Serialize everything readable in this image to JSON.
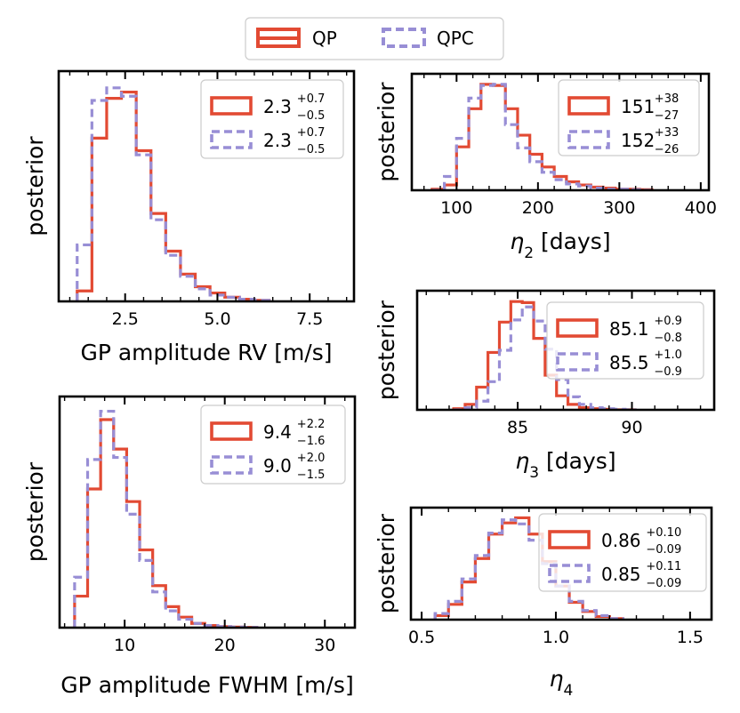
{
  "colors": {
    "qp": "#e24a33",
    "qpc": "#988ed5"
  },
  "global_legend": {
    "items": [
      {
        "name": "QP",
        "style": "solid"
      },
      {
        "name": "QPC",
        "style": "dashed"
      }
    ]
  },
  "chart_data": [
    {
      "id": "a",
      "type": "histogram",
      "xlabel": "GP amplitude RV [m/s]",
      "ylabel": "posterior",
      "xlim": [
        0.7,
        8.7
      ],
      "ylim": [
        0,
        1.1
      ],
      "xticks": [
        2.5,
        5.0,
        7.5
      ],
      "xtick_labels": [
        "2.5",
        "5.0",
        "7.5"
      ],
      "bin_edges": [
        1.2,
        1.6,
        2.0,
        2.4,
        2.8,
        3.2,
        3.6,
        4.0,
        4.4,
        4.8,
        5.2,
        5.6,
        6.0,
        6.4
      ],
      "series": [
        {
          "name": "QP",
          "values": [
            0.05,
            0.78,
            0.97,
            1.0,
            0.72,
            0.42,
            0.24,
            0.13,
            0.07,
            0.04,
            0.02,
            0.01,
            0.005
          ]
        },
        {
          "name": "QPC",
          "values": [
            0.27,
            0.96,
            1.02,
            0.98,
            0.7,
            0.39,
            0.22,
            0.12,
            0.06,
            0.03,
            0.02,
            0.01,
            0.005
          ]
        }
      ],
      "legend": [
        {
          "series": "QP",
          "base": "2.3",
          "sup": "+0.7",
          "sub": "−0.5"
        },
        {
          "series": "QPC",
          "base": "2.3",
          "sup": "+0.7",
          "sub": "−0.5"
        }
      ]
    },
    {
      "id": "b",
      "type": "histogram",
      "xlabel": "η",
      "xlabel_sub": "2",
      "xlabel_suffix": " [days]",
      "ylabel": "posterior",
      "xlim": [
        45,
        410
      ],
      "ylim": [
        0,
        1.1
      ],
      "xticks": [
        100,
        200,
        300,
        400
      ],
      "xtick_labels": [
        "100",
        "200",
        "300",
        "400"
      ],
      "bin_edges": [
        70,
        85,
        100,
        115,
        130,
        145,
        160,
        175,
        190,
        205,
        220,
        235,
        250,
        265,
        280,
        295,
        310,
        325,
        340
      ],
      "series": [
        {
          "name": "QP",
          "values": [
            0.01,
            0.05,
            0.41,
            0.77,
            1.0,
            0.99,
            0.77,
            0.52,
            0.34,
            0.22,
            0.13,
            0.08,
            0.05,
            0.03,
            0.02,
            0.01,
            0.01,
            0.005
          ]
        },
        {
          "name": "QPC",
          "values": [
            0.0,
            0.13,
            0.49,
            0.87,
            0.99,
            1.0,
            0.62,
            0.4,
            0.27,
            0.17,
            0.1,
            0.06,
            0.04,
            0.02,
            0.01,
            0.01,
            0.005,
            0.0
          ]
        }
      ],
      "legend": [
        {
          "series": "QP",
          "base": "151",
          "sup": "+38",
          "sub": "−27"
        },
        {
          "series": "QPC",
          "base": "152",
          "sup": "+33",
          "sub": "−26"
        }
      ]
    },
    {
      "id": "c",
      "type": "histogram",
      "xlabel": "η",
      "xlabel_sub": "3",
      "xlabel_suffix": " [days]",
      "ylabel": "posterior",
      "xlim": [
        80.6,
        93.6
      ],
      "ylim": [
        0,
        1.1
      ],
      "xticks": [
        85,
        90
      ],
      "xtick_labels": [
        "85",
        "90"
      ],
      "bin_edges": [
        82.2,
        82.7,
        83.2,
        83.7,
        84.2,
        84.7,
        85.2,
        85.7,
        86.2,
        86.7,
        87.2,
        87.7,
        88.2,
        88.7,
        89.2,
        89.7,
        90.2
      ],
      "series": [
        {
          "name": "QP",
          "values": [
            0.01,
            0.05,
            0.21,
            0.53,
            0.81,
            1.0,
            0.99,
            0.66,
            0.32,
            0.13,
            0.05,
            0.02,
            0.01,
            0.005,
            0.0,
            0.0
          ]
        },
        {
          "name": "QPC",
          "values": [
            0.0,
            0.02,
            0.08,
            0.26,
            0.55,
            0.83,
            0.95,
            0.82,
            0.56,
            0.28,
            0.12,
            0.05,
            0.02,
            0.01,
            0.005,
            0.0
          ]
        }
      ],
      "legend": [
        {
          "series": "QP",
          "base": "85.1",
          "sup": "+0.9",
          "sub": "−0.8"
        },
        {
          "series": "QPC",
          "base": "85.5",
          "sup": "+1.0",
          "sub": "−0.9"
        }
      ]
    },
    {
      "id": "d",
      "type": "histogram",
      "xlabel": "η",
      "xlabel_sub": "4",
      "xlabel_suffix": "",
      "ylabel": "posterior",
      "xlim": [
        0.46,
        1.58
      ],
      "ylim": [
        0,
        1.1
      ],
      "xticks": [
        0.5,
        1.0,
        1.5
      ],
      "xtick_labels": [
        "0.5",
        "1.0",
        "1.5"
      ],
      "bin_edges": [
        0.55,
        0.6,
        0.65,
        0.7,
        0.75,
        0.8,
        0.85,
        0.9,
        0.95,
        1.0,
        1.05,
        1.1,
        1.15,
        1.2,
        1.25
      ],
      "series": [
        {
          "name": "QP",
          "values": [
            0.04,
            0.15,
            0.37,
            0.6,
            0.84,
            0.95,
            1.0,
            0.84,
            0.57,
            0.33,
            0.17,
            0.08,
            0.03,
            0.01
          ]
        },
        {
          "name": "QPC",
          "values": [
            0.06,
            0.18,
            0.4,
            0.63,
            0.85,
            0.98,
            0.94,
            0.78,
            0.55,
            0.33,
            0.18,
            0.09,
            0.04,
            0.01
          ]
        }
      ],
      "legend": [
        {
          "series": "QP",
          "base": "0.86",
          "sup": "+0.10",
          "sub": "−0.09"
        },
        {
          "series": "QPC",
          "base": "0.85",
          "sup": "+0.11",
          "sub": "−0.09"
        }
      ]
    },
    {
      "id": "e",
      "type": "histogram",
      "xlabel": "GP amplitude FWHM [m/s]",
      "ylabel": "posterior",
      "xlim": [
        3.5,
        33
      ],
      "ylim": [
        0,
        1.1
      ],
      "xticks": [
        10,
        20,
        30
      ],
      "xtick_labels": [
        "10",
        "20",
        "30"
      ],
      "bin_edges": [
        5.0,
        6.3,
        7.6,
        8.9,
        10.2,
        11.5,
        12.8,
        14.1,
        15.4,
        16.7,
        18.0,
        19.3,
        20.6,
        21.9,
        23.2
      ],
      "series": [
        {
          "name": "QP",
          "values": [
            0.15,
            0.66,
            0.99,
            0.85,
            0.6,
            0.37,
            0.2,
            0.1,
            0.05,
            0.02,
            0.01,
            0.005,
            0.003,
            0.001
          ]
        },
        {
          "name": "QPC",
          "values": [
            0.24,
            0.8,
            1.03,
            0.81,
            0.54,
            0.32,
            0.17,
            0.08,
            0.04,
            0.02,
            0.01,
            0.005,
            0.003,
            0.001
          ]
        }
      ],
      "legend": [
        {
          "series": "QP",
          "base": "9.4",
          "sup": "+2.2",
          "sub": "−1.6"
        },
        {
          "series": "QPC",
          "base": "9.0",
          "sup": "+2.0",
          "sub": "−1.5"
        }
      ]
    }
  ]
}
